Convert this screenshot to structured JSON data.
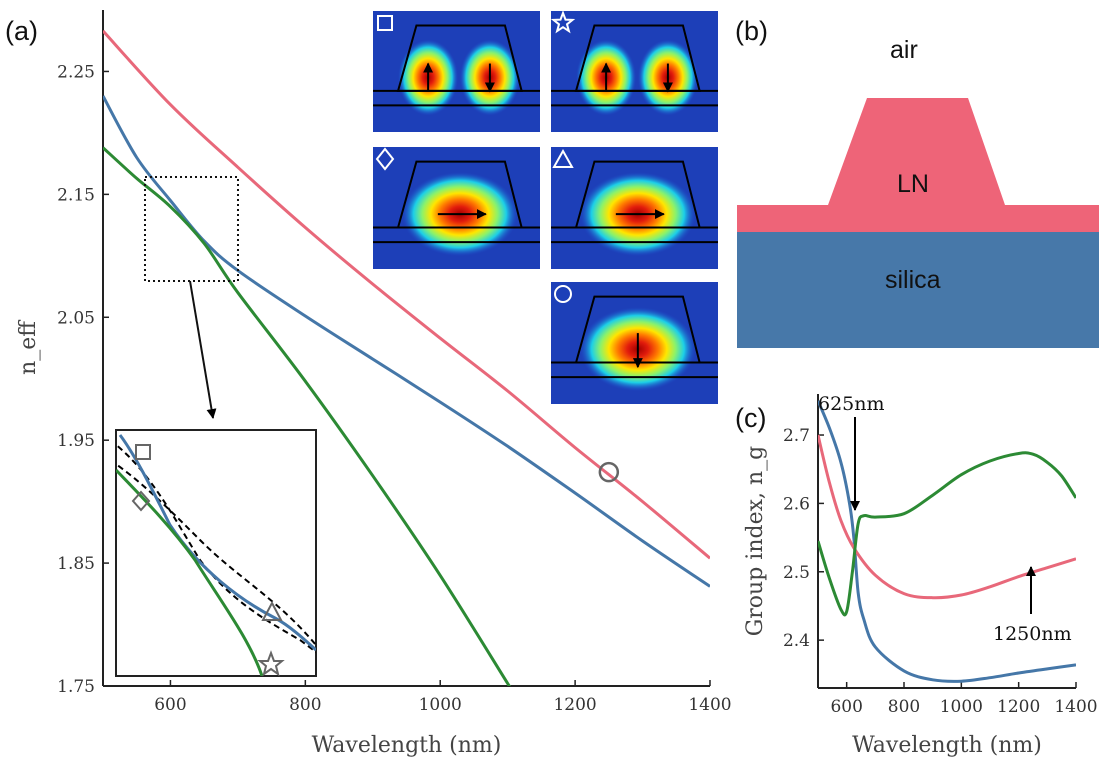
{
  "colors": {
    "pink": "#e8687a",
    "blue": "#4577a8",
    "green": "#2c8a34",
    "lnFill": "#ee6478",
    "silicaFill": "#4778a9",
    "marker": "#666666"
  },
  "panels": {
    "a": "(a)",
    "b": "(b)",
    "c": "(c)"
  },
  "diagram": {
    "air": "air",
    "ln": "LN",
    "silica": "silica"
  },
  "annotations": {
    "nm625": "625nm",
    "nm1250": "1250nm"
  },
  "mode_profiles": [
    {
      "marker": "square-icon",
      "arrows": [
        "up",
        "down"
      ]
    },
    {
      "marker": "star-icon",
      "arrows": [
        "up",
        "down"
      ]
    },
    {
      "marker": "diamond-icon",
      "arrows": [
        "right"
      ]
    },
    {
      "marker": "triangle-icon",
      "arrows": [
        "right"
      ]
    },
    {
      "marker": "circle-icon",
      "arrows": [
        "down"
      ]
    }
  ],
  "chart_data": [
    {
      "type": "line",
      "panel": "(a)",
      "xlabel": "Wavelength (nm)",
      "ylabel": "n_eff",
      "xlim": [
        500,
        1400
      ],
      "ylim": [
        1.75,
        2.3
      ],
      "xticks": [
        "600",
        "800",
        "1000",
        "1200",
        "1400"
      ],
      "yticks": [
        "1.75",
        "1.85",
        "1.95",
        "2.05",
        "2.15",
        "2.25"
      ],
      "series": [
        {
          "color": "pink",
          "points": [
            [
              500,
              2.283
            ],
            [
              600,
              2.223
            ],
            [
              700,
              2.172
            ],
            [
              800,
              2.123
            ],
            [
              900,
              2.077
            ],
            [
              1000,
              2.033
            ],
            [
              1100,
              1.99
            ],
            [
              1200,
              1.944
            ],
            [
              1300,
              1.9
            ],
            [
              1400,
              1.854
            ]
          ]
        },
        {
          "color": "blue",
          "points": [
            [
              500,
              2.23
            ],
            [
              550,
              2.18
            ],
            [
              600,
              2.145
            ],
            [
              650,
              2.112
            ],
            [
              700,
              2.088
            ],
            [
              800,
              2.051
            ],
            [
              900,
              2.016
            ],
            [
              1000,
              1.981
            ],
            [
              1100,
              1.945
            ],
            [
              1200,
              1.907
            ],
            [
              1300,
              1.868
            ],
            [
              1400,
              1.831
            ]
          ]
        },
        {
          "color": "green",
          "points": [
            [
              500,
              2.188
            ],
            [
              550,
              2.163
            ],
            [
              600,
              2.14
            ],
            [
              650,
              2.11
            ],
            [
              700,
              2.07
            ],
            [
              800,
              1.998
            ],
            [
              900,
              1.921
            ],
            [
              1000,
              1.84
            ],
            [
              1100,
              1.752
            ],
            [
              1105,
              1.748
            ]
          ]
        }
      ],
      "markers": [
        {
          "shape": "circle",
          "x": 1250,
          "y": 1.924
        }
      ],
      "inset": {
        "markers": [
          {
            "shape": "square"
          },
          {
            "shape": "diamond"
          },
          {
            "shape": "triangle"
          },
          {
            "shape": "star"
          }
        ]
      }
    },
    {
      "type": "line",
      "panel": "(c)",
      "xlabel": "Wavelength (nm)",
      "ylabel": "Group index, n_g",
      "xlim": [
        500,
        1400
      ],
      "ylim": [
        2.33,
        2.76
      ],
      "xticks": [
        "600",
        "800",
        "1000",
        "1200",
        "1400"
      ],
      "yticks": [
        "2.4",
        "2.5",
        "2.6",
        "2.7"
      ],
      "series": [
        {
          "color": "blue",
          "points": [
            [
              500,
              2.75
            ],
            [
              540,
              2.71
            ],
            [
              580,
              2.66
            ],
            [
              610,
              2.6
            ],
            [
              625,
              2.55
            ],
            [
              640,
              2.47
            ],
            [
              660,
              2.43
            ],
            [
              700,
              2.39
            ],
            [
              800,
              2.355
            ],
            [
              900,
              2.342
            ],
            [
              1000,
              2.34
            ],
            [
              1100,
              2.345
            ],
            [
              1200,
              2.352
            ],
            [
              1300,
              2.358
            ],
            [
              1400,
              2.364
            ]
          ]
        },
        {
          "color": "pink",
          "points": [
            [
              500,
              2.7
            ],
            [
              540,
              2.63
            ],
            [
              580,
              2.575
            ],
            [
              625,
              2.535
            ],
            [
              700,
              2.495
            ],
            [
              800,
              2.468
            ],
            [
              900,
              2.462
            ],
            [
              1000,
              2.466
            ],
            [
              1100,
              2.478
            ],
            [
              1200,
              2.493
            ],
            [
              1300,
              2.506
            ],
            [
              1400,
              2.519
            ]
          ]
        },
        {
          "color": "green",
          "points": [
            [
              500,
              2.545
            ],
            [
              540,
              2.49
            ],
            [
              580,
              2.445
            ],
            [
              600,
              2.442
            ],
            [
              620,
              2.5
            ],
            [
              640,
              2.57
            ],
            [
              660,
              2.582
            ],
            [
              700,
              2.58
            ],
            [
              800,
              2.585
            ],
            [
              900,
              2.612
            ],
            [
              1000,
              2.642
            ],
            [
              1100,
              2.662
            ],
            [
              1200,
              2.673
            ],
            [
              1250,
              2.672
            ],
            [
              1300,
              2.66
            ],
            [
              1350,
              2.64
            ],
            [
              1400,
              2.608
            ]
          ]
        }
      ]
    }
  ]
}
